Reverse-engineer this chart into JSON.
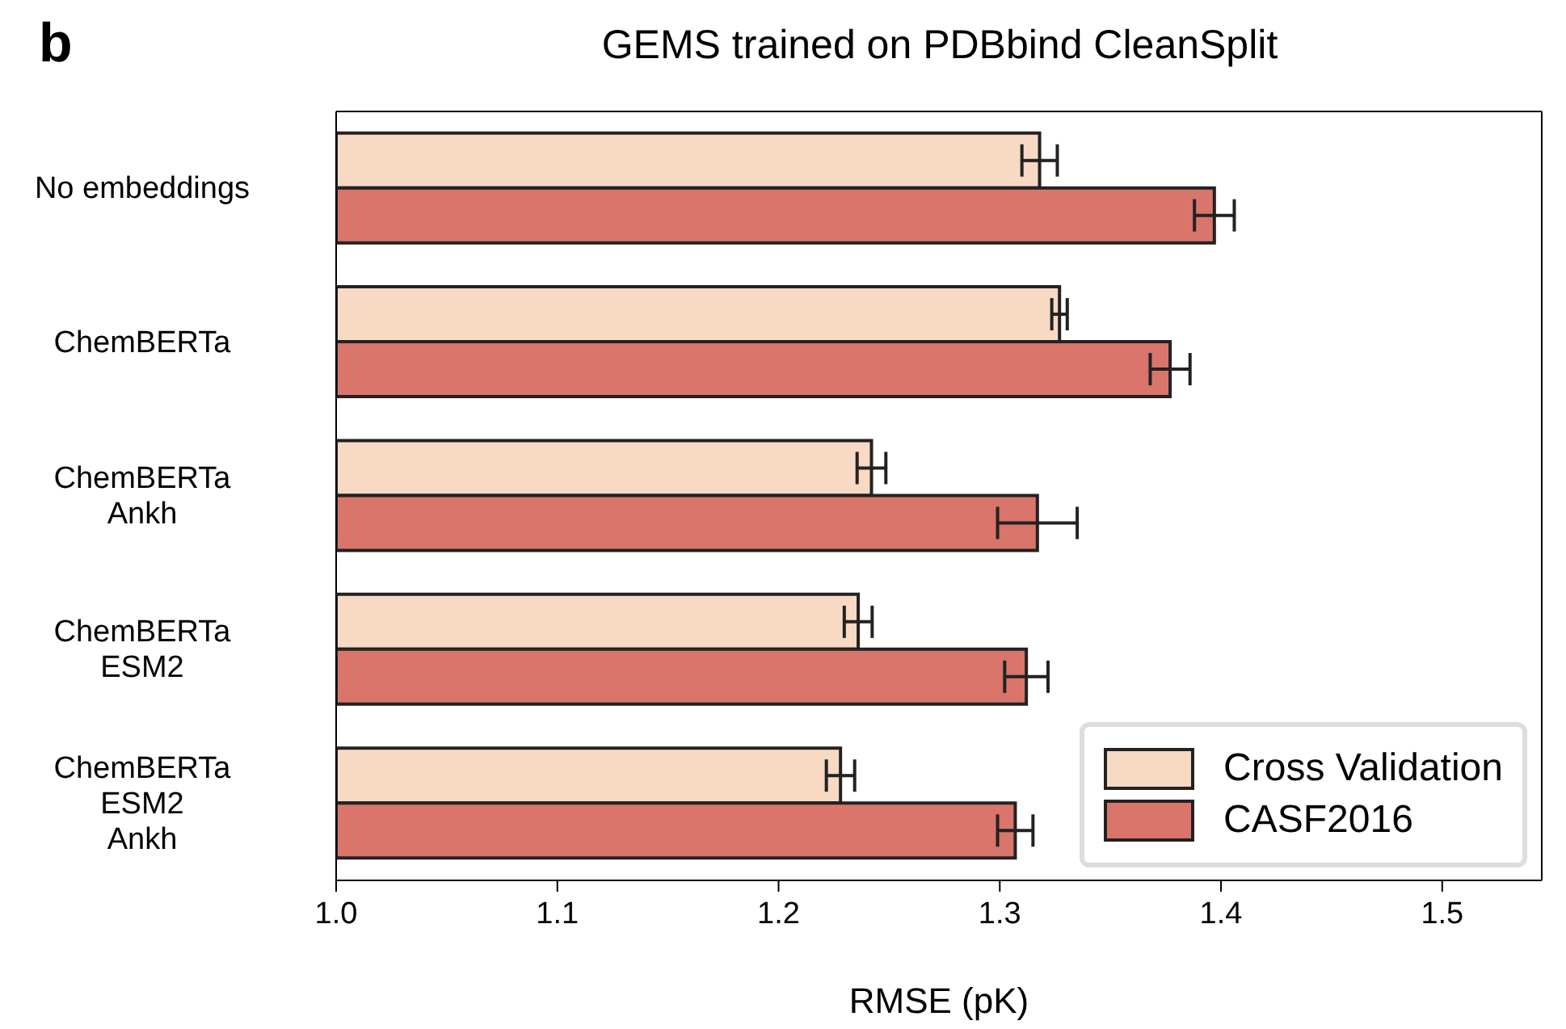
{
  "chart_data": {
    "type": "bar",
    "orientation": "horizontal",
    "title": "GEMS trained on PDBbind CleanSplit",
    "xlabel": "RMSE (pK)",
    "annotations": [
      "b"
    ],
    "categories": [
      "No embeddings",
      "ChemBERTa",
      "ChemBERTa\nAnkh",
      "ChemBERTa\nESM2",
      "ChemBERTa\nESM2\nAnkh"
    ],
    "series": [
      {
        "name": "Cross Validation",
        "color": "#f8d9c4",
        "values": [
          1.318,
          1.327,
          1.242,
          1.236,
          1.228
        ],
        "errors": [
          0.008,
          0.0035,
          0.0065,
          0.0063,
          0.0064
        ]
      },
      {
        "name": "CASF2016",
        "color": "#d9756a",
        "values": [
          1.397,
          1.377,
          1.317,
          1.312,
          1.307
        ],
        "errors": [
          0.009,
          0.009,
          0.018,
          0.0098,
          0.008
        ]
      }
    ],
    "xlim": [
      1.0,
      1.545
    ],
    "xticks": [
      {
        "value": 1.0,
        "label": "1.0"
      },
      {
        "value": 1.1,
        "label": "1.1"
      },
      {
        "value": 1.2,
        "label": "1.2"
      },
      {
        "value": 1.3,
        "label": "1.3"
      },
      {
        "value": 1.4,
        "label": "1.4"
      },
      {
        "value": 1.5,
        "label": "1.5"
      }
    ],
    "grid": false,
    "legend": "bottom right"
  }
}
